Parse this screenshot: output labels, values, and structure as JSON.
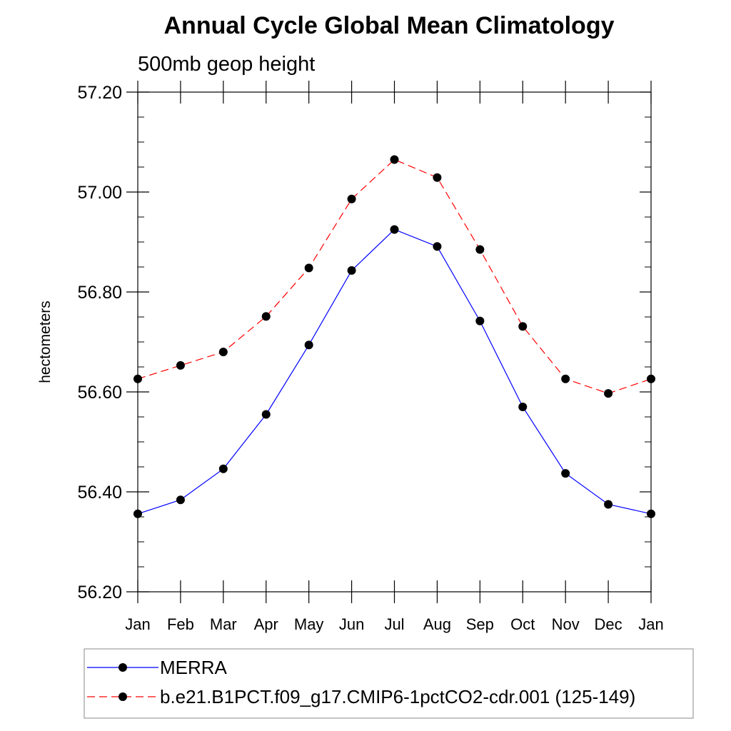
{
  "chart_data": {
    "type": "line",
    "title": "Annual Cycle Global Mean Climatology",
    "subtitle": "500mb geop height",
    "xlabel": "",
    "ylabel": "hectometers",
    "categories": [
      "Jan",
      "Feb",
      "Mar",
      "Apr",
      "May",
      "Jun",
      "Jul",
      "Aug",
      "Sep",
      "Oct",
      "Nov",
      "Dec",
      "Jan"
    ],
    "ylim": [
      56.2,
      57.2
    ],
    "yticks": [
      "56.20",
      "56.40",
      "56.60",
      "56.80",
      "57.00",
      "57.20"
    ],
    "series": [
      {
        "name": "MERRA",
        "color": "#0000ff",
        "style": "solid",
        "values": [
          56.356,
          56.384,
          56.446,
          56.555,
          56.694,
          56.843,
          56.925,
          56.891,
          56.742,
          56.57,
          56.437,
          56.375,
          56.356
        ]
      },
      {
        "name": "b.e21.B1PCT.f09_g17.CMIP6-1pctCO2-cdr.001 (125-149)",
        "color": "#ff0000",
        "style": "dashed",
        "values": [
          56.626,
          56.653,
          56.68,
          56.751,
          56.848,
          56.986,
          57.065,
          57.029,
          56.885,
          56.731,
          56.626,
          56.597,
          56.626
        ]
      }
    ],
    "legend_position": "bottom"
  }
}
